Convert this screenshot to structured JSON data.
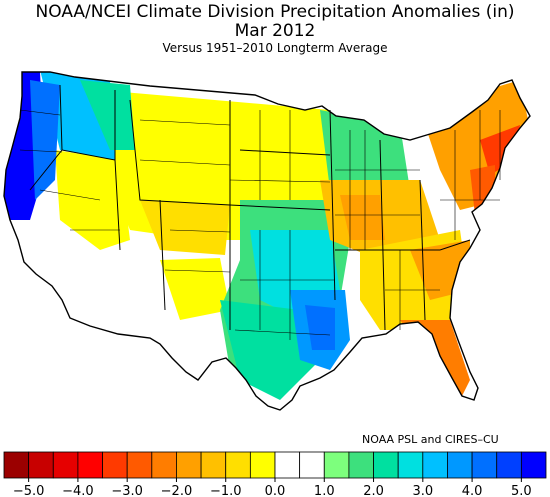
{
  "title": "NOAA/NCEI Climate Division Precipitation Anomalies (in)",
  "period": "Mar 2012",
  "subtitle": "Versus 1951–2010 Longterm Average",
  "credit": "NOAA PSL and CIRES–CU",
  "legend": {
    "unit": "in",
    "colors": [
      "#9b0000",
      "#c80000",
      "#e60000",
      "#ff0000",
      "#ff3a00",
      "#ff5a00",
      "#ff7d00",
      "#ffa000",
      "#ffc000",
      "#ffdf00",
      "#ffff00",
      "#ffffff",
      "#ffffff",
      "#7dff7d",
      "#3de07d",
      "#00e0a0",
      "#00e0e0",
      "#00c0ff",
      "#0098ff",
      "#0070ff",
      "#0040ff",
      "#0000ff"
    ],
    "ticks": [
      "−5.0",
      "−4.0",
      "−3.0",
      "−2.0",
      "−1.0",
      "0.0",
      "1.0",
      "2.0",
      "3.0",
      "4.0",
      "5.0"
    ]
  },
  "regions": [
    {
      "name": "Pacific Northwest coast",
      "color": "#0000ff"
    },
    {
      "name": "Northern California coast",
      "color": "#0040ff"
    },
    {
      "name": "Interior Washington/Oregon",
      "color": "#00c0ff"
    },
    {
      "name": "Northern Rockies",
      "color": "#00e0a0"
    },
    {
      "name": "Northern Plains / Central Rockies",
      "color": "#ffff00"
    },
    {
      "name": "Colorado / Utah",
      "color": "#ffdf00"
    },
    {
      "name": "Southwest",
      "color": "#ffffff"
    },
    {
      "name": "Southern Plains / Texas",
      "color": "#00e0e0"
    },
    {
      "name": "Lower Mississippi Valley",
      "color": "#0070ff"
    },
    {
      "name": "Upper Midwest",
      "color": "#3de07d"
    },
    {
      "name": "Ohio Valley",
      "color": "#ffc000"
    },
    {
      "name": "Southeast",
      "color": "#ffa000"
    },
    {
      "name": "Florida",
      "color": "#ff7d00"
    },
    {
      "name": "Northeast interior",
      "color": "#ffa000"
    },
    {
      "name": "Southern New England / Mid-Atlantic coast",
      "color": "#ff3a00"
    }
  ]
}
